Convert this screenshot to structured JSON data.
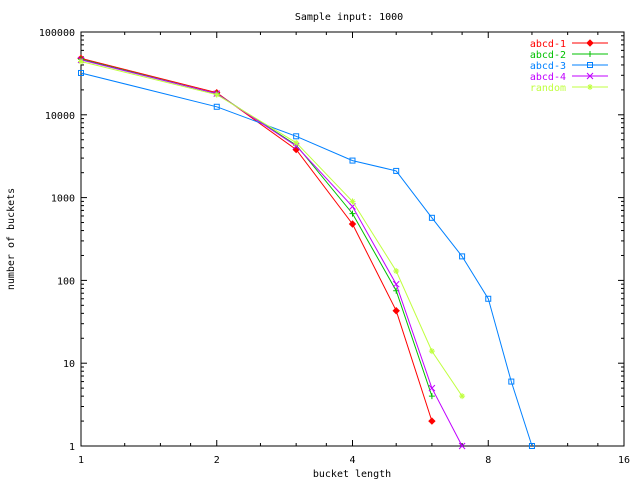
{
  "chart_data": {
    "type": "line",
    "title": "Sample input: 1000",
    "xlabel": "bucket length",
    "ylabel": "number of buckets",
    "x_scale": "log2",
    "y_scale": "log10",
    "xlim": [
      1,
      16
    ],
    "ylim": [
      1,
      100000
    ],
    "x_ticks": [
      1,
      2,
      4,
      8,
      16
    ],
    "x_tick_labels": [
      "1",
      "2",
      "4",
      "8",
      "16"
    ],
    "y_ticks": [
      1,
      10,
      100,
      1000,
      10000,
      100000
    ],
    "y_tick_labels": [
      "1",
      "10",
      "100",
      "1000",
      "10000",
      "100000"
    ],
    "grid": false,
    "legend_position": "top-right",
    "series": [
      {
        "name": "abcd-1",
        "color": "#ff0000",
        "marker": "diamond",
        "x": [
          1,
          2,
          3,
          4,
          5,
          6
        ],
        "y": [
          48000,
          18500,
          3800,
          480,
          43,
          2
        ]
      },
      {
        "name": "abcd-2",
        "color": "#00c000",
        "marker": "plus",
        "x": [
          1,
          2,
          3,
          4,
          5,
          6
        ],
        "y": [
          47000,
          18000,
          4300,
          640,
          75,
          4
        ]
      },
      {
        "name": "abcd-3",
        "color": "#0080ff",
        "marker": "square",
        "x": [
          1,
          2,
          3,
          4,
          5,
          6,
          7,
          8,
          9,
          10
        ],
        "y": [
          32000,
          12500,
          5500,
          2800,
          2100,
          570,
          195,
          60,
          6,
          1
        ]
      },
      {
        "name": "abcd-4",
        "color": "#c000ff",
        "marker": "x",
        "x": [
          1,
          2,
          3,
          4,
          5,
          6,
          7
        ],
        "y": [
          46000,
          18000,
          4200,
          780,
          90,
          5,
          1
        ]
      },
      {
        "name": "random",
        "color": "#c0ff40",
        "marker": "star",
        "x": [
          1,
          2,
          3,
          4,
          5,
          6,
          7
        ],
        "y": [
          44000,
          17500,
          4600,
          900,
          130,
          14,
          4
        ]
      }
    ]
  }
}
